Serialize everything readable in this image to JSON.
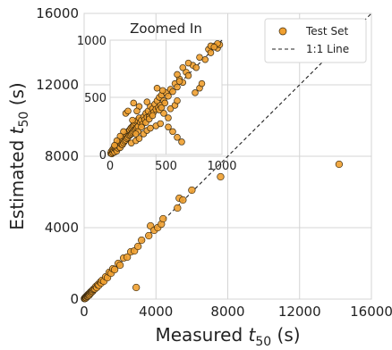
{
  "chart_data": [
    {
      "type": "scatter",
      "title": "",
      "xlabel": {
        "base": "Measured ",
        "symbol": "t",
        "subscript": "50",
        "unit": " (s)"
      },
      "ylabel": {
        "base": "Estimated ",
        "symbol": "t",
        "subscript": "50",
        "unit": " (s)"
      },
      "xlim": [
        0,
        16000
      ],
      "ylim": [
        0,
        16000
      ],
      "xticks": [
        0,
        4000,
        8000,
        12000,
        16000
      ],
      "yticks": [
        0,
        4000,
        8000,
        12000,
        16000
      ],
      "xtick_labels": [
        "0",
        "4000",
        "8000",
        "12000",
        "16000"
      ],
      "ytick_labels": [
        "0",
        "4000",
        "8000",
        "12000",
        "16000"
      ],
      "grid": true,
      "legend_position": "top-right",
      "series": [
        {
          "name": "Test Set",
          "color": "#f0a030",
          "edge": "#3a2a10",
          "points": [
            [
              20,
              30
            ],
            [
              40,
              50
            ],
            [
              60,
              40
            ],
            [
              80,
              100
            ],
            [
              100,
              120
            ],
            [
              120,
              90
            ],
            [
              150,
              160
            ],
            [
              180,
              200
            ],
            [
              200,
              180
            ],
            [
              220,
              250
            ],
            [
              250,
              270
            ],
            [
              280,
              230
            ],
            [
              300,
              320
            ],
            [
              330,
              300
            ],
            [
              360,
              390
            ],
            [
              400,
              380
            ],
            [
              430,
              450
            ],
            [
              470,
              440
            ],
            [
              500,
              520
            ],
            [
              540,
              560
            ],
            [
              600,
              580
            ],
            [
              650,
              700
            ],
            [
              700,
              650
            ],
            [
              760,
              800
            ],
            [
              820,
              780
            ],
            [
              900,
              950
            ],
            [
              950,
              900
            ],
            [
              1000,
              1050
            ],
            [
              1100,
              1000
            ],
            [
              1200,
              1250
            ],
            [
              1300,
              1200
            ],
            [
              1400,
              1500
            ],
            [
              1500,
              1450
            ],
            [
              1600,
              1700
            ],
            [
              1700,
              1650
            ],
            [
              1900,
              2000
            ],
            [
              2000,
              1900
            ],
            [
              2200,
              2300
            ],
            [
              2400,
              2350
            ],
            [
              2600,
              2650
            ],
            [
              2800,
              2700
            ],
            [
              2900,
              650
            ],
            [
              3000,
              2950
            ],
            [
              3200,
              3300
            ],
            [
              3600,
              3550
            ],
            [
              3700,
              4100
            ],
            [
              3900,
              3850
            ],
            [
              4100,
              4000
            ],
            [
              4300,
              4200
            ],
            [
              4400,
              4500
            ],
            [
              5200,
              5100
            ],
            [
              5300,
              5650
            ],
            [
              5500,
              5550
            ],
            [
              6000,
              6100
            ],
            [
              7600,
              6850
            ],
            [
              14200,
              7550
            ]
          ]
        },
        {
          "name": "1:1 Line",
          "style": "dashed",
          "color": "#222222",
          "x": [
            0,
            16000
          ],
          "y": [
            0,
            16000
          ]
        }
      ],
      "legend": [
        {
          "label": "Test Set",
          "marker": "circle"
        },
        {
          "label": "1:1 Line",
          "marker": "dashed-line"
        }
      ]
    },
    {
      "type": "scatter",
      "title": "Zoomed In",
      "xlim": [
        0,
        1000
      ],
      "ylim": [
        0,
        1000
      ],
      "xticks": [
        0,
        500,
        1000
      ],
      "yticks": [
        0,
        500,
        1000
      ],
      "xtick_labels": [
        "0",
        "500",
        "1000"
      ],
      "ytick_labels": [
        "0",
        "500",
        "1000"
      ],
      "grid": true,
      "series": [
        {
          "name": "Test Set",
          "color": "#f0a030",
          "edge": "#3a2a10",
          "points": [
            [
              5,
              10
            ],
            [
              10,
              25
            ],
            [
              15,
              5
            ],
            [
              20,
              40
            ],
            [
              25,
              15
            ],
            [
              30,
              35
            ],
            [
              35,
              60
            ],
            [
              40,
              20
            ],
            [
              45,
              50
            ],
            [
              50,
              75
            ],
            [
              55,
              45
            ],
            [
              60,
              30
            ],
            [
              65,
              80
            ],
            [
              70,
              55
            ],
            [
              75,
              95
            ],
            [
              80,
              70
            ],
            [
              85,
              110
            ],
            [
              90,
              60
            ],
            [
              95,
              120
            ],
            [
              100,
              90
            ],
            [
              105,
              130
            ],
            [
              110,
              85
            ],
            [
              115,
              140
            ],
            [
              120,
              100
            ],
            [
              125,
              160
            ],
            [
              130,
              115
            ],
            [
              135,
              150
            ],
            [
              140,
              125
            ],
            [
              145,
              175
            ],
            [
              150,
              140
            ],
            [
              155,
              190
            ],
            [
              160,
              150
            ],
            [
              165,
              205
            ],
            [
              170,
              165
            ],
            [
              175,
              215
            ],
            [
              180,
              170
            ],
            [
              185,
              230
            ],
            [
              190,
              180
            ],
            [
              195,
              240
            ],
            [
              200,
              190
            ],
            [
              205,
              250
            ],
            [
              210,
              200
            ],
            [
              215,
              260
            ],
            [
              220,
              215
            ],
            [
              225,
              275
            ],
            [
              230,
              225
            ],
            [
              235,
              290
            ],
            [
              240,
              235
            ],
            [
              245,
              300
            ],
            [
              250,
              245
            ],
            [
              260,
              320
            ],
            [
              270,
              280
            ],
            [
              280,
              300
            ],
            [
              290,
              265
            ],
            [
              300,
              330
            ],
            [
              310,
              305
            ],
            [
              320,
              360
            ],
            [
              330,
              325
            ],
            [
              340,
              380
            ],
            [
              350,
              330
            ],
            [
              360,
              420
            ],
            [
              370,
              355
            ],
            [
              380,
              400
            ],
            [
              390,
              370
            ],
            [
              400,
              440
            ],
            [
              410,
              395
            ],
            [
              420,
              470
            ],
            [
              430,
              410
            ],
            [
              440,
              500
            ],
            [
              450,
              430
            ],
            [
              460,
              520
            ],
            [
              480,
              470
            ],
            [
              500,
              540
            ],
            [
              520,
              510
            ],
            [
              540,
              570
            ],
            [
              560,
              550
            ],
            [
              580,
              620
            ],
            [
              600,
              590
            ],
            [
              620,
              660
            ],
            [
              650,
              630
            ],
            [
              680,
              720
            ],
            [
              700,
              690
            ],
            [
              740,
              780
            ],
            [
              770,
              760
            ],
            [
              800,
              850
            ],
            [
              850,
              830
            ],
            [
              880,
              920
            ],
            [
              900,
              890
            ],
            [
              940,
              950
            ],
            [
              960,
              930
            ],
            [
              980,
              960
            ],
            [
              960,
              970
            ],
            [
              190,
              100
            ],
            [
              230,
              120
            ],
            [
              260,
              140
            ],
            [
              300,
              180
            ],
            [
              330,
              210
            ],
            [
              360,
              230
            ],
            [
              410,
              250
            ],
            [
              450,
              270
            ],
            [
              520,
              240
            ],
            [
              560,
              200
            ],
            [
              600,
              150
            ],
            [
              640,
              110
            ],
            [
              520,
              320
            ],
            [
              480,
              360
            ],
            [
              470,
              560
            ],
            [
              540,
              400
            ],
            [
              580,
              430
            ],
            [
              600,
              470
            ],
            [
              420,
              580
            ],
            [
              260,
              420
            ],
            [
              240,
              380
            ],
            [
              330,
              460
            ],
            [
              600,
              700
            ],
            [
              620,
              640
            ],
            [
              650,
              760
            ],
            [
              700,
              800
            ],
            [
              760,
              540
            ],
            [
              800,
              580
            ],
            [
              820,
              620
            ],
            [
              900,
              950
            ],
            [
              930,
              940
            ],
            [
              140,
              360
            ],
            [
              160,
              380
            ],
            [
              200,
              300
            ],
            [
              210,
              450
            ],
            [
              120,
              200
            ],
            [
              90,
              160
            ],
            [
              60,
              120
            ],
            [
              40,
              80
            ],
            [
              250,
              200
            ],
            [
              230,
              180
            ],
            [
              280,
              240
            ],
            [
              320,
              280
            ],
            [
              350,
              310
            ],
            [
              380,
              340
            ],
            [
              440,
              390
            ],
            [
              460,
              410
            ],
            [
              490,
              450
            ]
          ]
        },
        {
          "name": "1:1 Line",
          "style": "dashed",
          "color": "#222222",
          "x": [
            0,
            1000
          ],
          "y": [
            0,
            1000
          ]
        }
      ]
    }
  ]
}
